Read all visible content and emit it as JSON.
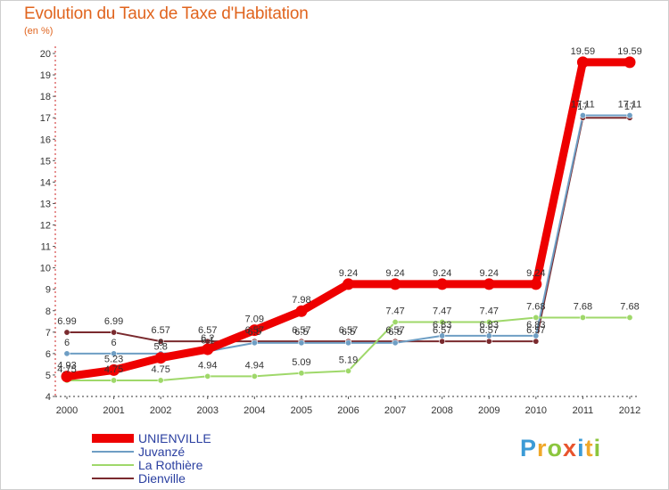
{
  "title": "Evolution du Taux de Taxe d'Habitation",
  "subtitle": "(en %)",
  "logo": "Proxiti",
  "chart_data": {
    "type": "line",
    "title": "Evolution du Taux de Taxe d'Habitation",
    "ylabel": "(en %)",
    "xlabel": "",
    "ylim": [
      4,
      20
    ],
    "yticks": [
      4,
      5,
      6,
      7,
      8,
      9,
      10,
      11,
      12,
      13,
      14,
      15,
      16,
      17,
      18,
      19,
      20
    ],
    "grid": false,
    "legend": "bottom-left",
    "categories": [
      "2000",
      "2001",
      "2002",
      "2003",
      "2004",
      "2005",
      "2006",
      "2007",
      "2008",
      "2009",
      "2010",
      "2011",
      "2012"
    ],
    "series": [
      {
        "name": "Dienville",
        "color": "#7a2a2e",
        "values": [
          6.99,
          6.99,
          6.57,
          6.57,
          6.57,
          6.57,
          6.57,
          6.57,
          6.57,
          6.57,
          6.57,
          17.0,
          17.0
        ],
        "labels": [
          "6.99",
          "6.99",
          "6.57",
          "6.57",
          "6.57",
          "6.57",
          "6.57",
          "6.57",
          "6.57",
          "6.57",
          "6.57",
          "17",
          "17"
        ]
      },
      {
        "name": "Juvanzé",
        "color": "#6e9ec4",
        "values": [
          6.0,
          6.0,
          6.0,
          6.1,
          6.5,
          6.5,
          6.5,
          6.5,
          6.83,
          6.83,
          6.83,
          17.11,
          17.11
        ],
        "labels": [
          "6",
          "6",
          "6",
          "6.1",
          "6.5",
          "6.5",
          "6.5",
          "6.5",
          "6.83",
          "6.83",
          "6.83",
          "17.11",
          "17.11"
        ]
      },
      {
        "name": "La Rothière",
        "color": "#9fd86a",
        "values": [
          4.75,
          4.75,
          4.75,
          4.94,
          4.94,
          5.09,
          5.19,
          7.47,
          7.47,
          7.47,
          7.68,
          7.68,
          7.68
        ],
        "labels": [
          "4.75",
          "4.75",
          "4.75",
          "4.94",
          "4.94",
          "5.09",
          "5.19",
          "7.47",
          "7.47",
          "7.47",
          "7.68",
          "7.68",
          "7.68"
        ]
      },
      {
        "name": "UNIENVILLE",
        "color": "#ee0000",
        "values": [
          4.93,
          5.23,
          5.8,
          6.2,
          7.09,
          7.98,
          9.24,
          9.24,
          9.24,
          9.24,
          9.24,
          19.59,
          19.59
        ],
        "labels": [
          "4.93",
          "5.23",
          "5.8",
          "6.2",
          "7.09",
          "7.98",
          "9.24",
          "9.24",
          "9.24",
          "9.24",
          "9.24",
          "19.59",
          "19.59"
        ]
      }
    ]
  }
}
